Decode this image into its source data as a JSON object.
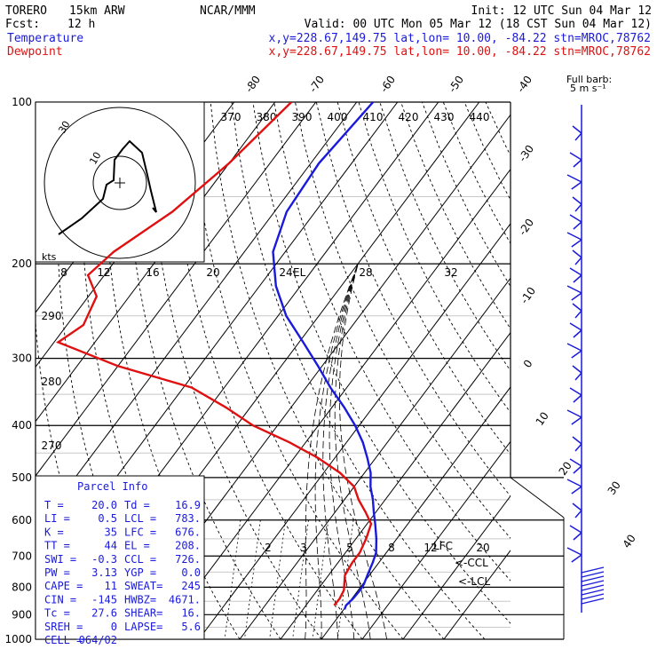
{
  "header": {
    "model": "TORERO",
    "resolution": "15km ARW",
    "center": "NCAR/MMM",
    "init": "Init: 12 UTC Sun 04 Mar 12",
    "fcst_label": "Fcst:",
    "fcst_value": "12 h",
    "valid": "Valid: 00 UTC Mon 05 Mar 12 (18 CST Sun 04 Mar 12)",
    "temp_label": "Temperature",
    "dew_label": "Dewpoint",
    "location": "x,y=228.67,149.75   lat,lon= 10.00, -84.22  stn=MROC,78762",
    "barb_title": "Full barb:",
    "barb_sub": "5 m s⁻¹"
  },
  "chart_data": {
    "type": "line",
    "title": "",
    "pressure_levels": [
      100,
      200,
      300,
      400,
      500,
      600,
      700,
      800,
      900,
      1000
    ],
    "isotherm_labels": [
      "-80",
      "-70",
      "-60",
      "-50",
      "-40",
      "-30",
      "-20",
      "-10",
      "0",
      "10",
      "20",
      "30",
      "40"
    ],
    "theta_labels": [
      "370",
      "380",
      "390",
      "400",
      "410",
      "420",
      "430",
      "440"
    ],
    "mixing_ratio_upper": [
      "8",
      "12",
      "16",
      "20",
      "24",
      "28",
      "32"
    ],
    "mixing_ratio_lower": [
      "2",
      "3",
      "5",
      "8",
      "12",
      "20"
    ],
    "left_labels": [
      "290",
      "280",
      "270"
    ],
    "markers": [
      "EL",
      "LFC",
      "<-CCL",
      "<-LCL"
    ],
    "hodo_ring_labels": [
      "10",
      "30"
    ],
    "hodo_unit": "kts",
    "series": [
      {
        "name": "Temperature",
        "color": "#1a1adc",
        "points": [
          [
            -66,
            100
          ],
          [
            -68,
            130
          ],
          [
            -67,
            160
          ],
          [
            -63,
            190
          ],
          [
            -56,
            220
          ],
          [
            -48,
            250
          ],
          [
            -39,
            280
          ],
          [
            -31,
            310
          ],
          [
            -24,
            340
          ],
          [
            -17,
            370
          ],
          [
            -11,
            400
          ],
          [
            -6,
            430
          ],
          [
            -2,
            460
          ],
          [
            1.5,
            490
          ],
          [
            4,
            520
          ],
          [
            7,
            550
          ],
          [
            9.5,
            580
          ],
          [
            12,
            610
          ],
          [
            15,
            650
          ],
          [
            17.5,
            690
          ],
          [
            18.5,
            720
          ],
          [
            19.5,
            760
          ],
          [
            20.3,
            790
          ],
          [
            20.5,
            810
          ],
          [
            20.3,
            840
          ],
          [
            19.8,
            865
          ],
          [
            20.2,
            880
          ]
        ]
      },
      {
        "name": "Dewpoint",
        "color": "#e01010",
        "points": [
          [
            -86,
            100
          ],
          [
            -90,
            130
          ],
          [
            -95,
            160
          ],
          [
            -102,
            190
          ],
          [
            -104,
            210
          ],
          [
            -98,
            230
          ],
          [
            -96,
            260
          ],
          [
            -99,
            280
          ],
          [
            -80,
            310
          ],
          [
            -58,
            340
          ],
          [
            -46,
            370
          ],
          [
            -36,
            400
          ],
          [
            -24,
            430
          ],
          [
            -14,
            460
          ],
          [
            -6,
            490
          ],
          [
            0,
            520
          ],
          [
            3.5,
            550
          ],
          [
            7.5,
            580
          ],
          [
            11,
            610
          ],
          [
            12.5,
            650
          ],
          [
            13.5,
            690
          ],
          [
            13.5,
            720
          ],
          [
            14,
            760
          ],
          [
            15.5,
            790
          ],
          [
            16.5,
            810
          ],
          [
            17,
            840
          ],
          [
            16.9,
            865
          ]
        ]
      }
    ]
  },
  "parcel_info": {
    "title": "Parcel Info",
    "rows": [
      [
        "T   =",
        "20.0",
        "Td =",
        "16.9"
      ],
      [
        "LI  =",
        "0.5",
        "LCL =",
        "783."
      ],
      [
        "K   =",
        "35",
        "LFC =",
        "676."
      ],
      [
        "TT  =",
        "44",
        "EL  =",
        "208."
      ],
      [
        "SWI =",
        "-0.3",
        "CCL =",
        "726."
      ],
      [
        "PW  =",
        "3.13",
        "YGP =",
        "0.0"
      ],
      [
        "CAPE =",
        "11",
        "SWEAT=",
        "245"
      ],
      [
        "CIN  =",
        "-145",
        "HWBZ=",
        "4671."
      ],
      [
        "Tc  =",
        "27.6",
        "SHEAR=",
        "16."
      ],
      [
        "SREH =",
        "0",
        "LAPSE=",
        "5.6"
      ],
      [
        "CELL =",
        "064/02",
        "",
        ""
      ]
    ]
  }
}
